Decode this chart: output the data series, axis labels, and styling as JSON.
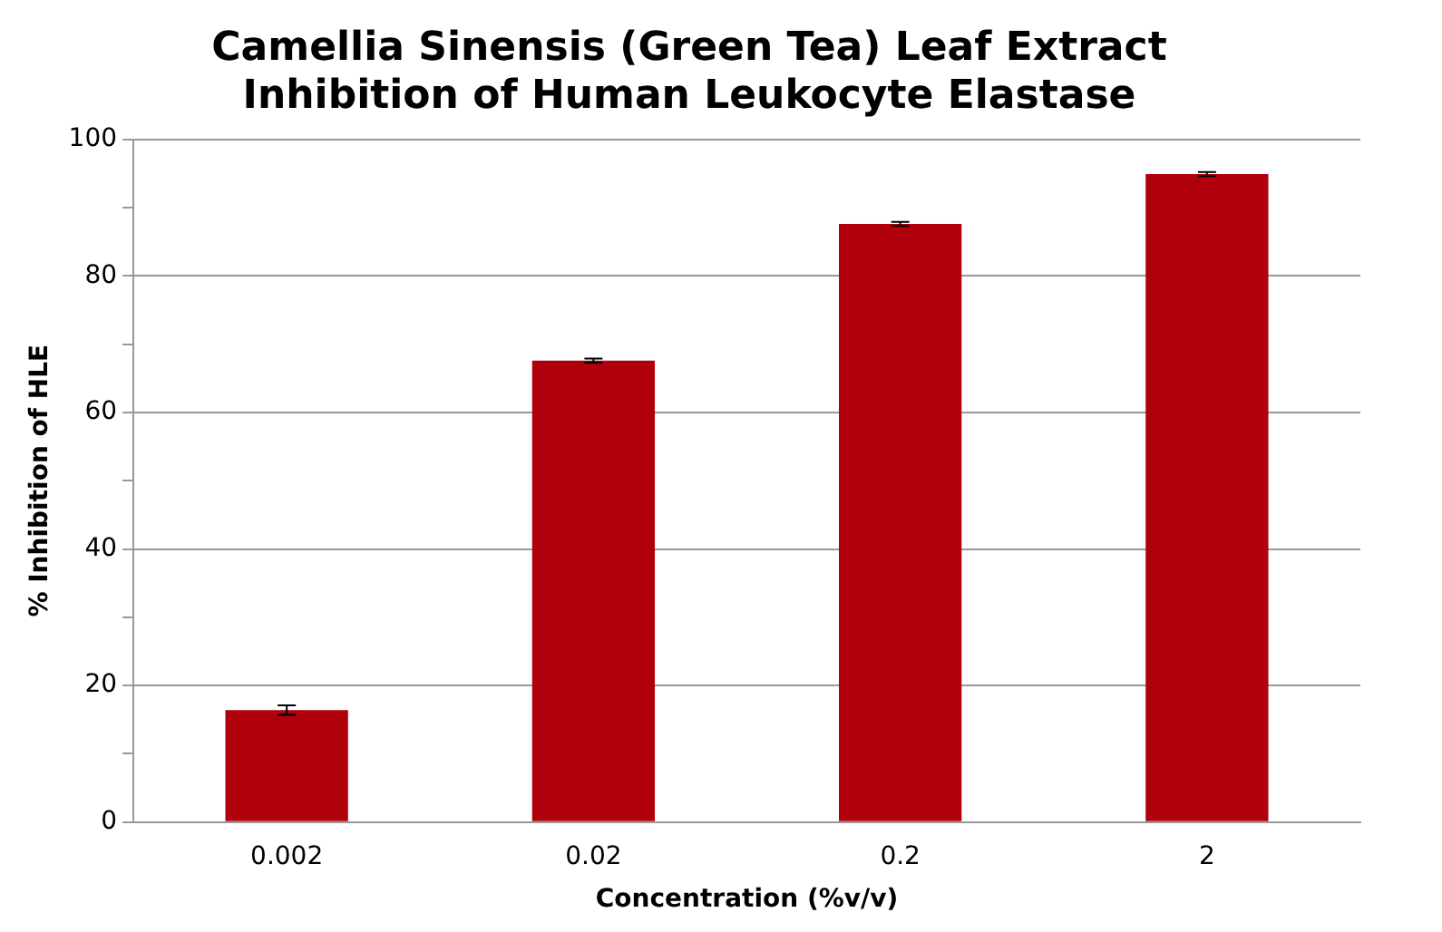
{
  "chart_data": {
    "type": "bar",
    "title": "Camellia Sinensis (Green Tea) Leaf Extract\nInhibition of Human Leukocyte Elastase",
    "xlabel": "Concentration (%v/v)",
    "ylabel": "% Inhibition of HLE",
    "categories": [
      "0.002",
      "0.02",
      "0.2",
      "2"
    ],
    "values": [
      16.4,
      67.6,
      87.6,
      94.9
    ],
    "errors": [
      0.7,
      0.3,
      0.3,
      0.3
    ],
    "color": "#b0000c",
    "ylim": [
      0,
      100
    ],
    "yticks": [
      0,
      {
        "value": 10,
        "label": null
      },
      20,
      {
        "value": 30,
        "label": null
      },
      40,
      {
        "value": 50,
        "label": null
      },
      60,
      {
        "value": 70,
        "label": null
      },
      80,
      {
        "value": 90,
        "label": null
      },
      100
    ],
    "grid": "y",
    "legend": false
  }
}
